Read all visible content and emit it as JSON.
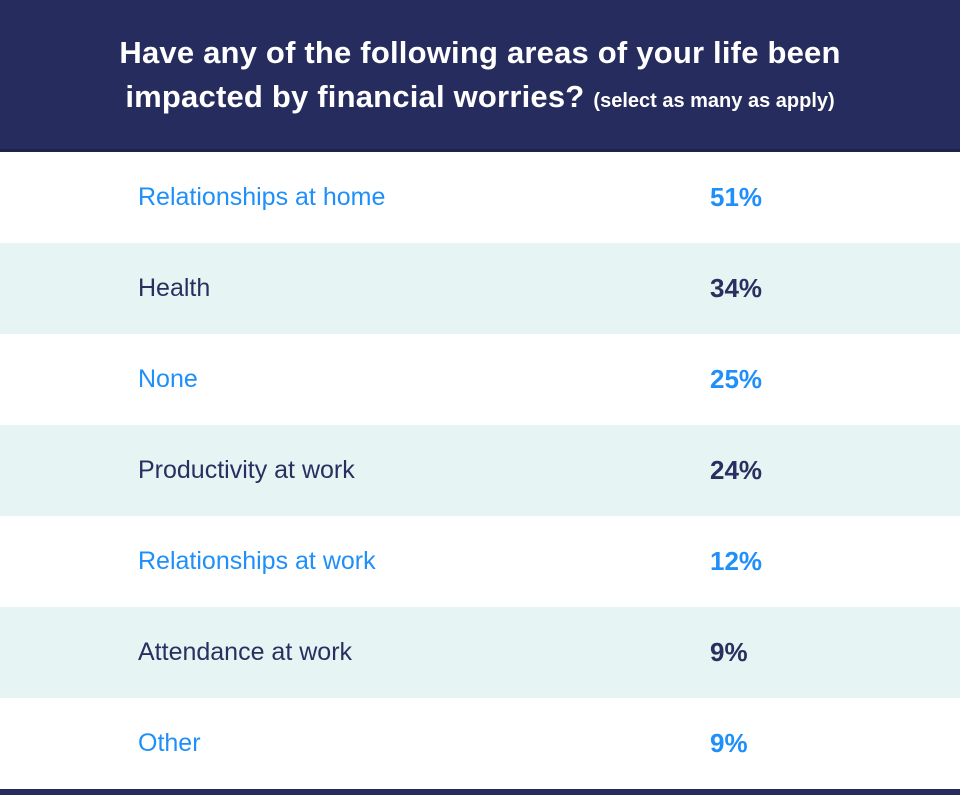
{
  "header": {
    "title_line1": "Have any of the following areas of your life been",
    "title_line2": "impacted by financial worries?",
    "title_note": "(select as many as apply)"
  },
  "colors": {
    "header_bg": "#272c5e",
    "header_border": "#1d224a",
    "row_alt_bg": "#e7f4f4",
    "row_bg": "#ffffff",
    "accent_blue": "#1f8ffa",
    "navy_text": "#28305f"
  },
  "chart_data": {
    "type": "table",
    "title": "Have any of the following areas of your life been impacted by financial worries? (select as many as apply)",
    "categories": [
      "Relationships at home",
      "Health",
      "None",
      "Productivity at work",
      "Relationships at work",
      "Attendance at work",
      "Other"
    ],
    "values": [
      51,
      34,
      25,
      24,
      12,
      9,
      9
    ],
    "value_labels": [
      "51%",
      "34%",
      "25%",
      "24%",
      "12%",
      "9%",
      "9%"
    ],
    "layout": "two-column list, label left / percent right-column, alternating row shading"
  },
  "rows": [
    {
      "label": "Relationships at home",
      "value": "51%",
      "color": "blue",
      "background": "white"
    },
    {
      "label": "Health",
      "value": "34%",
      "color": "navy",
      "background": "light"
    },
    {
      "label": "None",
      "value": "25%",
      "color": "blue",
      "background": "white"
    },
    {
      "label": "Productivity at work",
      "value": "24%",
      "color": "navy",
      "background": "light"
    },
    {
      "label": "Relationships at work",
      "value": "12%",
      "color": "blue",
      "background": "white"
    },
    {
      "label": "Attendance at work",
      "value": "9%",
      "color": "navy",
      "background": "light"
    },
    {
      "label": "Other",
      "value": "9%",
      "color": "blue",
      "background": "white"
    }
  ]
}
